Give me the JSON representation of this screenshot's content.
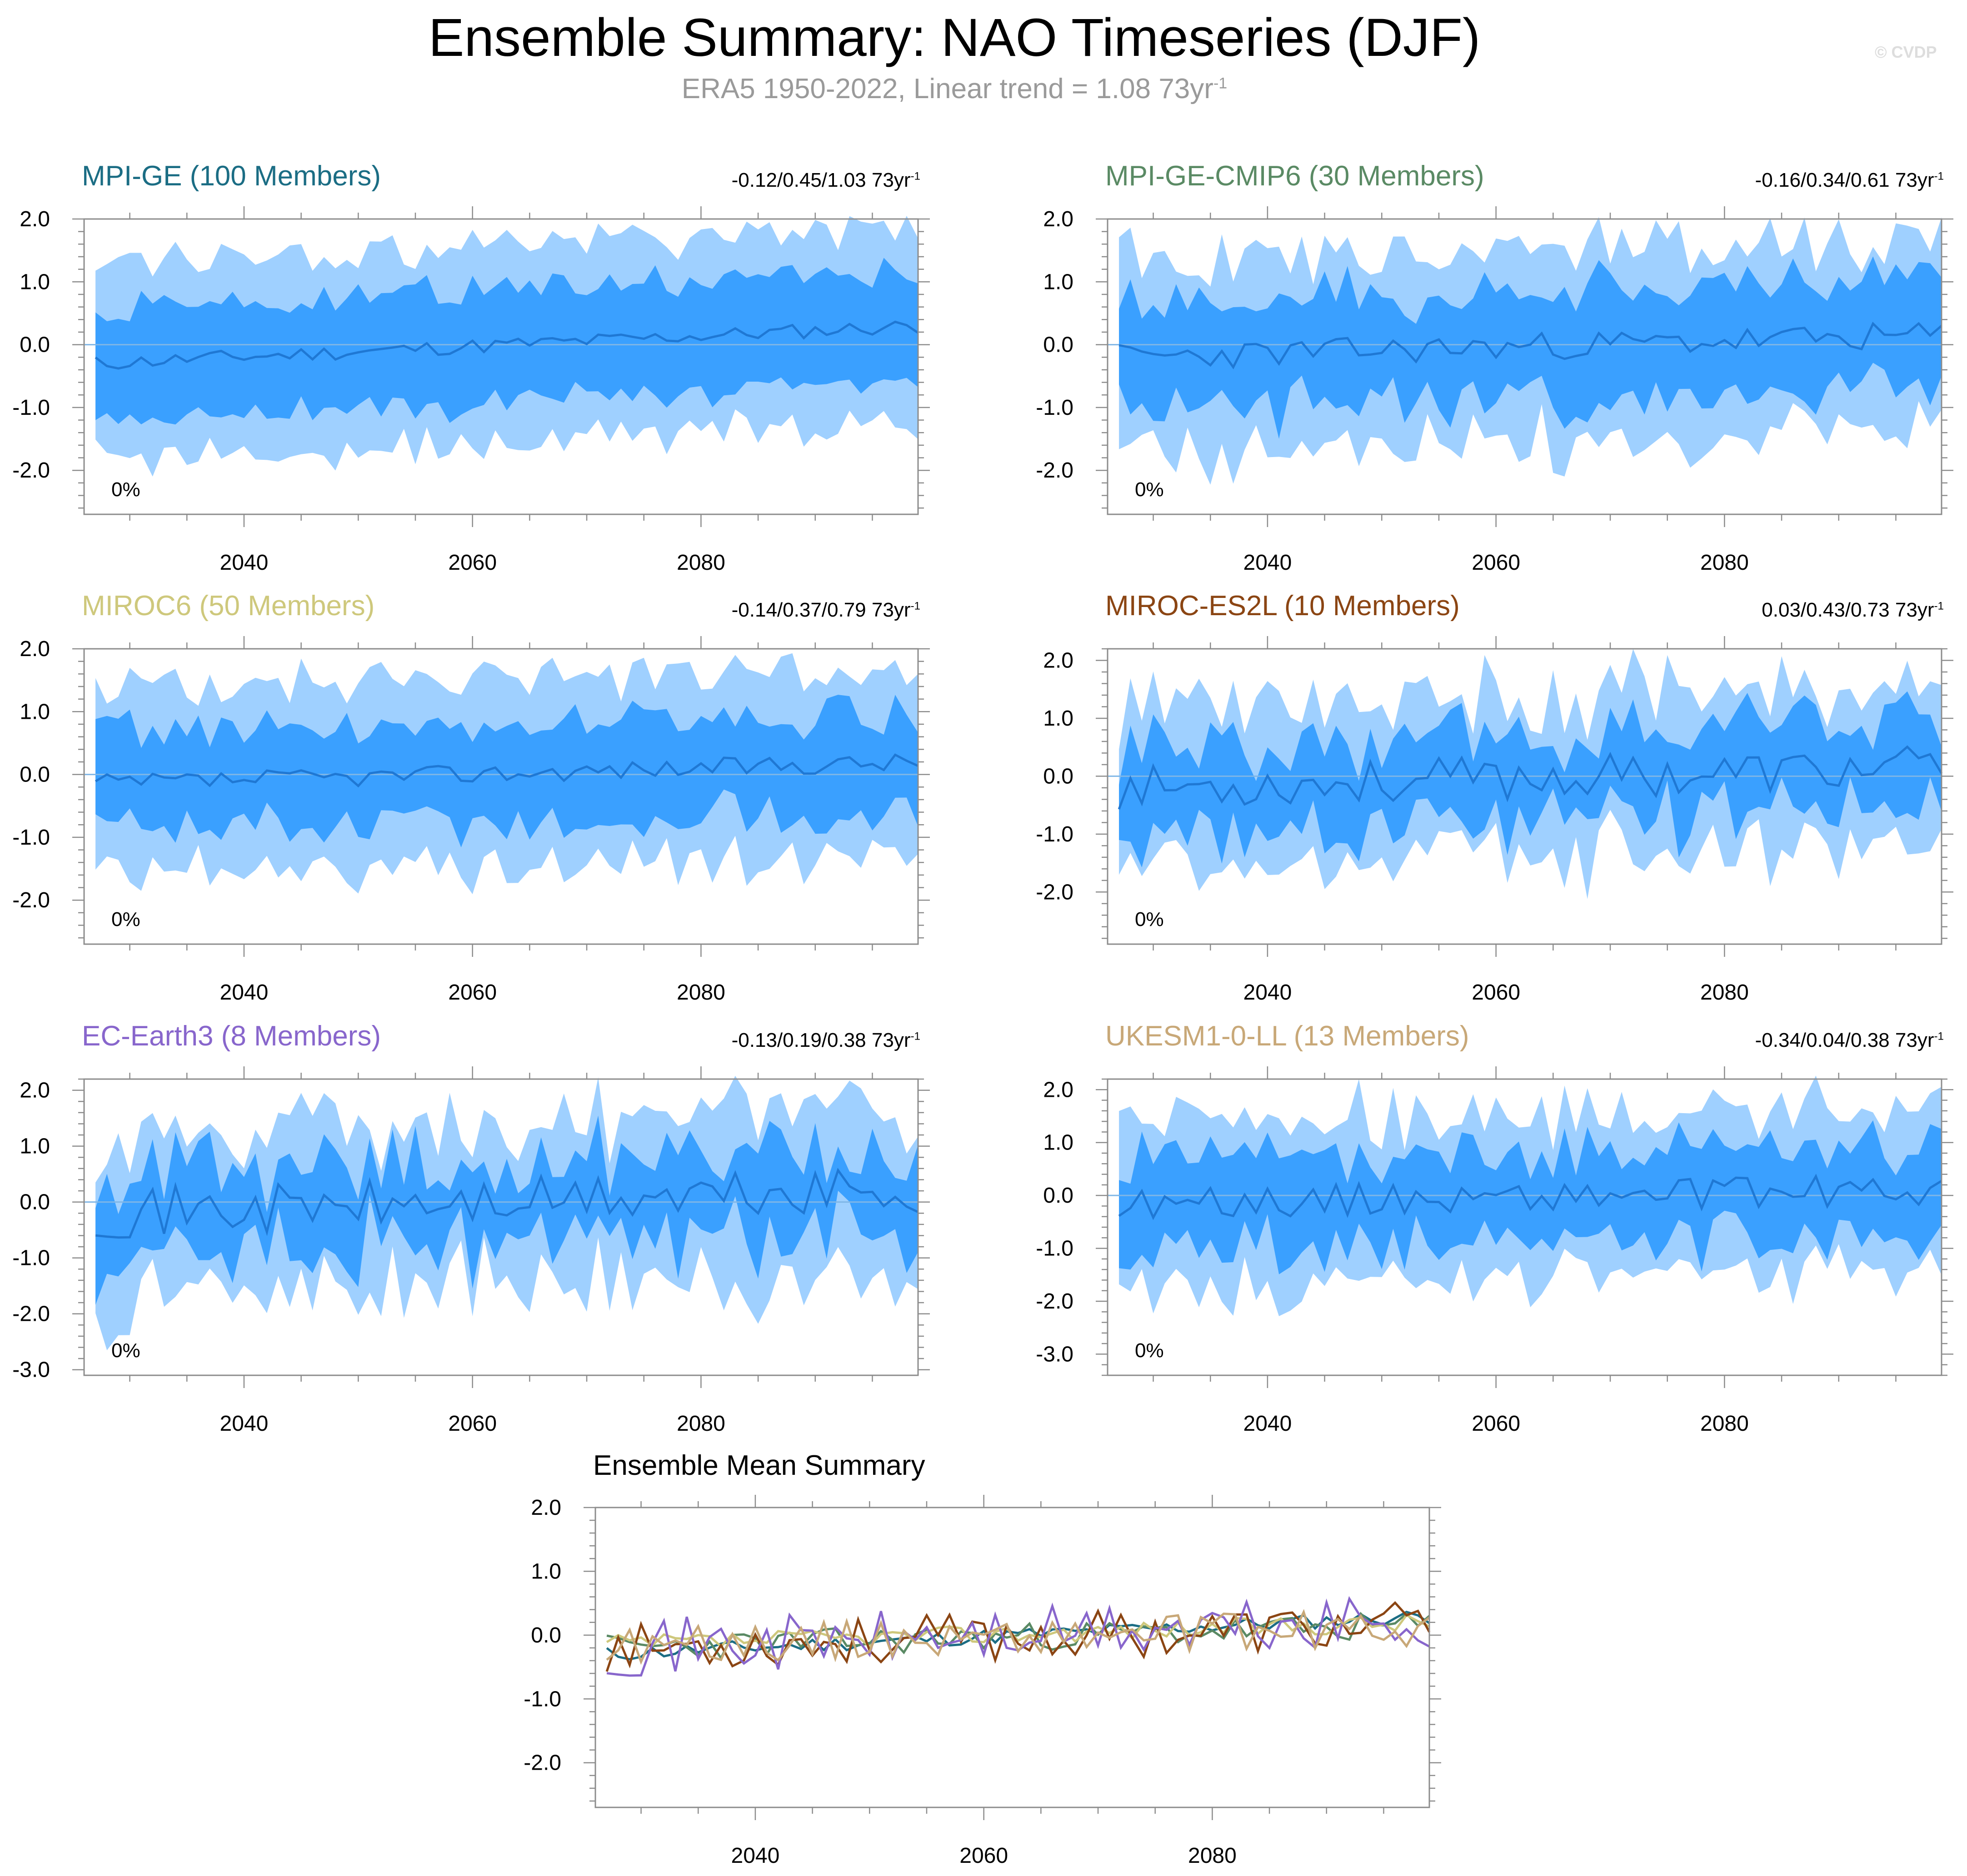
{
  "page": {
    "title": "Ensemble Summary: NAO Timeseries (DJF)",
    "subtitle_main": "ERA5 1950-2022, Linear trend = 1.08 73yr",
    "subtitle_exp": "-1",
    "watermark": "© CVDP"
  },
  "colors": {
    "outer_band": "#9fd0ff",
    "inner_band": "#3aa0ff",
    "mean_line": "#1f78d4",
    "axis": "#8c8c8c",
    "MPI-GE": "#1b6d84",
    "MPI-GE-CMIP6": "#5a8a64",
    "MIROC6": "#cec87c",
    "MIROC-ES2L": "#8b4513",
    "EC-Earth3": "#8866cc",
    "UKESM1-0-LL": "#c8a878"
  },
  "chart_data": [
    {
      "type": "area",
      "id": "mpi-ge",
      "title": "MPI-GE (100 Members)",
      "trend": "-0.12/0.45/1.03 73yr",
      "trend_exp": "-1",
      "pct_label": "0%",
      "ylim": [
        -2.7,
        2.0
      ],
      "yticks": [
        "2.0",
        "1.0",
        "0.0",
        "-1.0",
        "-2.0"
      ],
      "ytick_values": [
        2,
        1,
        0,
        -1,
        -2
      ],
      "xticks": [
        "2040",
        "2060",
        "2080"
      ],
      "xtick_values": [
        2040,
        2060,
        2080
      ],
      "xlim": [
        2026,
        2099
      ],
      "x_start": 2027,
      "x_end": 2099,
      "mean_start": -0.3,
      "mean_end": 0.3,
      "mean_amp": 0.12,
      "inner_half": 0.9,
      "outer_half": 1.55,
      "noise": 0.22,
      "seed": 11
    },
    {
      "type": "area",
      "id": "mpi-ge-cmip6",
      "title": "MPI-GE-CMIP6 (30 Members)",
      "trend": "-0.16/0.34/0.61 73yr",
      "trend_exp": "-1",
      "pct_label": "0%",
      "ylim": [
        -2.7,
        2.0
      ],
      "yticks": [
        "2.0",
        "1.0",
        "0.0",
        "-1.0",
        "-2.0"
      ],
      "ytick_values": [
        2,
        1,
        0,
        -1,
        -2
      ],
      "xticks": [
        "2040",
        "2060",
        "2080"
      ],
      "xtick_values": [
        2040,
        2060,
        2080
      ],
      "xlim": [
        2026,
        2099
      ],
      "x_start": 2027,
      "x_end": 2099,
      "mean_start": -0.2,
      "mean_end": 0.15,
      "mean_amp": 0.22,
      "inner_half": 0.85,
      "outer_half": 1.5,
      "noise": 0.35,
      "seed": 23
    },
    {
      "type": "area",
      "id": "miroc6",
      "title": "MIROC6 (50 Members)",
      "trend": "-0.14/0.37/0.79 73yr",
      "trend_exp": "-1",
      "pct_label": "0%",
      "ylim": [
        -2.7,
        2.0
      ],
      "yticks": [
        "2.0",
        "1.0",
        "0.0",
        "-1.0",
        "-2.0"
      ],
      "ytick_values": [
        2,
        1,
        0,
        -1,
        -2
      ],
      "xticks": [
        "2040",
        "2060",
        "2080"
      ],
      "xtick_values": [
        2040,
        2060,
        2080
      ],
      "xlim": [
        2026,
        2099
      ],
      "x_start": 2027,
      "x_end": 2099,
      "mean_start": -0.15,
      "mean_end": 0.2,
      "mean_amp": 0.15,
      "inner_half": 0.8,
      "outer_half": 1.45,
      "noise": 0.3,
      "seed": 37
    },
    {
      "type": "area",
      "id": "miroc-es2l",
      "title": "MIROC-ES2L (10 Members)",
      "trend": "0.03/0.43/0.73 73yr",
      "trend_exp": "-1",
      "pct_label": "0%",
      "ylim": [
        -2.9,
        2.2
      ],
      "yticks": [
        "2.0",
        "1.0",
        "0.0",
        "-1.0",
        "-2.0"
      ],
      "ytick_values": [
        2,
        1,
        0,
        -1,
        -2
      ],
      "xticks": [
        "2040",
        "2060",
        "2080"
      ],
      "xtick_values": [
        2040,
        2060,
        2080
      ],
      "xlim": [
        2026,
        2099
      ],
      "x_start": 2027,
      "x_end": 2099,
      "mean_start": -0.2,
      "mean_end": 0.15,
      "mean_amp": 0.38,
      "inner_half": 0.7,
      "outer_half": 1.35,
      "noise": 0.45,
      "seed": 53
    },
    {
      "type": "area",
      "id": "ec-earth3",
      "title": "EC-Earth3 (8 Members)",
      "trend": "-0.13/0.19/0.38 73yr",
      "trend_exp": "-1",
      "pct_label": "0%",
      "ylim": [
        -3.1,
        2.2
      ],
      "yticks": [
        "2.0",
        "1.0",
        "0.0",
        "-1.0",
        "-2.0",
        "-3.0"
      ],
      "ytick_values": [
        2,
        1,
        0,
        -1,
        -2,
        -3
      ],
      "xticks": [
        "2040",
        "2060",
        "2080"
      ],
      "xtick_values": [
        2040,
        2060,
        2080
      ],
      "xlim": [
        2026,
        2099
      ],
      "x_start": 2027,
      "x_end": 2099,
      "mean_start": -0.2,
      "mean_end": 0.2,
      "mean_amp": 0.45,
      "inner_half": 0.75,
      "outer_half": 1.45,
      "noise": 0.5,
      "seed": 71
    },
    {
      "type": "area",
      "id": "ukesm1-0-ll",
      "title": "UKESM1-0-LL (13 Members)",
      "trend": "-0.34/0.04/0.38 73yr",
      "trend_exp": "-1",
      "pct_label": "0%",
      "ylim": [
        -3.4,
        2.2
      ],
      "yticks": [
        "2.0",
        "1.0",
        "0.0",
        "-1.0",
        "-2.0",
        "-3.0"
      ],
      "ytick_values": [
        2,
        1,
        0,
        -1,
        -2,
        -3
      ],
      "xticks": [
        "2040",
        "2060",
        "2080"
      ],
      "xtick_values": [
        2040,
        2060,
        2080
      ],
      "xlim": [
        2026,
        2099
      ],
      "x_start": 2027,
      "x_end": 2099,
      "mean_start": -0.15,
      "mean_end": 0.1,
      "mean_amp": 0.3,
      "inner_half": 0.85,
      "outer_half": 1.55,
      "noise": 0.4,
      "seed": 89
    },
    {
      "type": "line",
      "id": "ensemble-mean",
      "title": "Ensemble Mean Summary",
      "ylim": [
        -2.7,
        2.0
      ],
      "yticks": [
        "2.0",
        "1.0",
        "0.0",
        "-1.0",
        "-2.0"
      ],
      "ytick_values": [
        2,
        1,
        0,
        -1,
        -2
      ],
      "xticks": [
        "2040",
        "2060",
        "2080"
      ],
      "xtick_values": [
        2040,
        2060,
        2080
      ],
      "xlim": [
        2026,
        2099
      ],
      "x_start": 2027,
      "x_end": 2099,
      "series": [
        {
          "name": "MPI-GE",
          "color_key": "MPI-GE",
          "start": -0.3,
          "end": 0.3,
          "amp": 0.12,
          "seed": 11
        },
        {
          "name": "MPI-GE-CMIP6",
          "color_key": "MPI-GE-CMIP6",
          "start": -0.2,
          "end": 0.15,
          "amp": 0.22,
          "seed": 23
        },
        {
          "name": "MIROC6",
          "color_key": "MIROC6",
          "start": -0.15,
          "end": 0.2,
          "amp": 0.15,
          "seed": 37
        },
        {
          "name": "MIROC-ES2L",
          "color_key": "MIROC-ES2L",
          "start": -0.2,
          "end": 0.15,
          "amp": 0.38,
          "seed": 53
        },
        {
          "name": "EC-Earth3",
          "color_key": "EC-Earth3",
          "start": -0.2,
          "end": 0.2,
          "amp": 0.45,
          "seed": 71
        },
        {
          "name": "UKESM1-0-LL",
          "color_key": "UKESM1-0-LL",
          "start": -0.15,
          "end": 0.1,
          "amp": 0.3,
          "seed": 89
        }
      ]
    }
  ]
}
